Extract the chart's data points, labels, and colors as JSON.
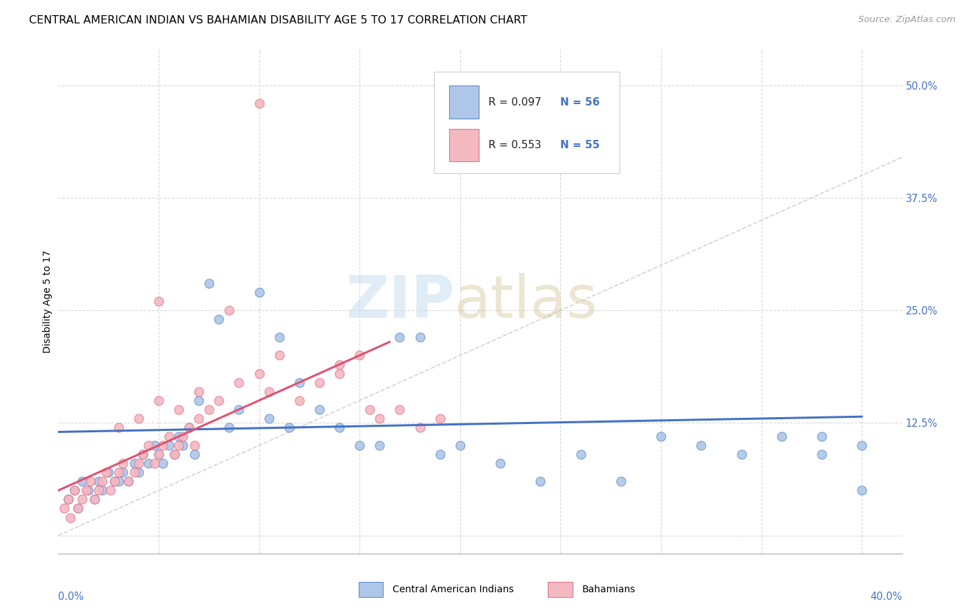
{
  "title": "CENTRAL AMERICAN INDIAN VS BAHAMIAN DISABILITY AGE 5 TO 17 CORRELATION CHART",
  "source": "Source: ZipAtlas.com",
  "ylabel": "Disability Age 5 to 17",
  "xlim": [
    0.0,
    0.42
  ],
  "ylim": [
    -0.02,
    0.54
  ],
  "ytick_values": [
    0.0,
    0.125,
    0.25,
    0.375,
    0.5
  ],
  "ytick_labels": [
    "",
    "12.5%",
    "25.0%",
    "37.5%",
    "50.0%"
  ],
  "xtick_values": [
    0.0,
    0.05,
    0.1,
    0.15,
    0.2,
    0.25,
    0.3,
    0.35,
    0.4
  ],
  "legend_label_blue": "Central American Indians",
  "legend_label_pink": "Bahamians",
  "blue_color": "#aec6e8",
  "pink_color": "#f4b8c1",
  "blue_edge_color": "#5b8fcc",
  "pink_edge_color": "#e0748a",
  "blue_line_color": "#4472c4",
  "pink_line_color": "#e05070",
  "gray_dash_color": "#c8c8c8",
  "blue_scatter_x": [
    0.005,
    0.008,
    0.01,
    0.012,
    0.015,
    0.018,
    0.02,
    0.022,
    0.025,
    0.028,
    0.03,
    0.032,
    0.035,
    0.038,
    0.04,
    0.042,
    0.045,
    0.048,
    0.05,
    0.052,
    0.055,
    0.058,
    0.06,
    0.062,
    0.065,
    0.068,
    0.07,
    0.075,
    0.08,
    0.085,
    0.09,
    0.1,
    0.105,
    0.11,
    0.115,
    0.12,
    0.13,
    0.14,
    0.15,
    0.16,
    0.17,
    0.18,
    0.19,
    0.2,
    0.22,
    0.24,
    0.26,
    0.28,
    0.3,
    0.32,
    0.34,
    0.36,
    0.38,
    0.4,
    0.38,
    0.4
  ],
  "blue_scatter_y": [
    0.04,
    0.05,
    0.03,
    0.06,
    0.05,
    0.04,
    0.06,
    0.05,
    0.07,
    0.06,
    0.06,
    0.07,
    0.06,
    0.08,
    0.07,
    0.09,
    0.08,
    0.1,
    0.09,
    0.08,
    0.1,
    0.09,
    0.11,
    0.1,
    0.12,
    0.09,
    0.15,
    0.28,
    0.24,
    0.12,
    0.14,
    0.27,
    0.13,
    0.22,
    0.12,
    0.17,
    0.14,
    0.12,
    0.1,
    0.1,
    0.22,
    0.22,
    0.09,
    0.1,
    0.08,
    0.06,
    0.09,
    0.06,
    0.11,
    0.1,
    0.09,
    0.11,
    0.09,
    0.1,
    0.11,
    0.05
  ],
  "pink_scatter_x": [
    0.003,
    0.005,
    0.006,
    0.008,
    0.01,
    0.012,
    0.014,
    0.016,
    0.018,
    0.02,
    0.022,
    0.024,
    0.026,
    0.028,
    0.03,
    0.032,
    0.035,
    0.038,
    0.04,
    0.042,
    0.045,
    0.048,
    0.05,
    0.052,
    0.055,
    0.058,
    0.06,
    0.062,
    0.065,
    0.068,
    0.07,
    0.075,
    0.08,
    0.09,
    0.1,
    0.105,
    0.11,
    0.12,
    0.13,
    0.14,
    0.14,
    0.15,
    0.155,
    0.16,
    0.17,
    0.18,
    0.19,
    0.05,
    0.06,
    0.07,
    0.03,
    0.04,
    0.05,
    0.085,
    0.1
  ],
  "pink_scatter_y": [
    0.03,
    0.04,
    0.02,
    0.05,
    0.03,
    0.04,
    0.05,
    0.06,
    0.04,
    0.05,
    0.06,
    0.07,
    0.05,
    0.06,
    0.07,
    0.08,
    0.06,
    0.07,
    0.08,
    0.09,
    0.1,
    0.08,
    0.09,
    0.1,
    0.11,
    0.09,
    0.1,
    0.11,
    0.12,
    0.1,
    0.13,
    0.14,
    0.15,
    0.17,
    0.18,
    0.16,
    0.2,
    0.15,
    0.17,
    0.18,
    0.19,
    0.2,
    0.14,
    0.13,
    0.14,
    0.12,
    0.13,
    0.15,
    0.14,
    0.16,
    0.12,
    0.13,
    0.26,
    0.25,
    0.48
  ],
  "title_fontsize": 11.5,
  "axis_label_fontsize": 10,
  "tick_fontsize": 10.5,
  "source_fontsize": 9.5
}
